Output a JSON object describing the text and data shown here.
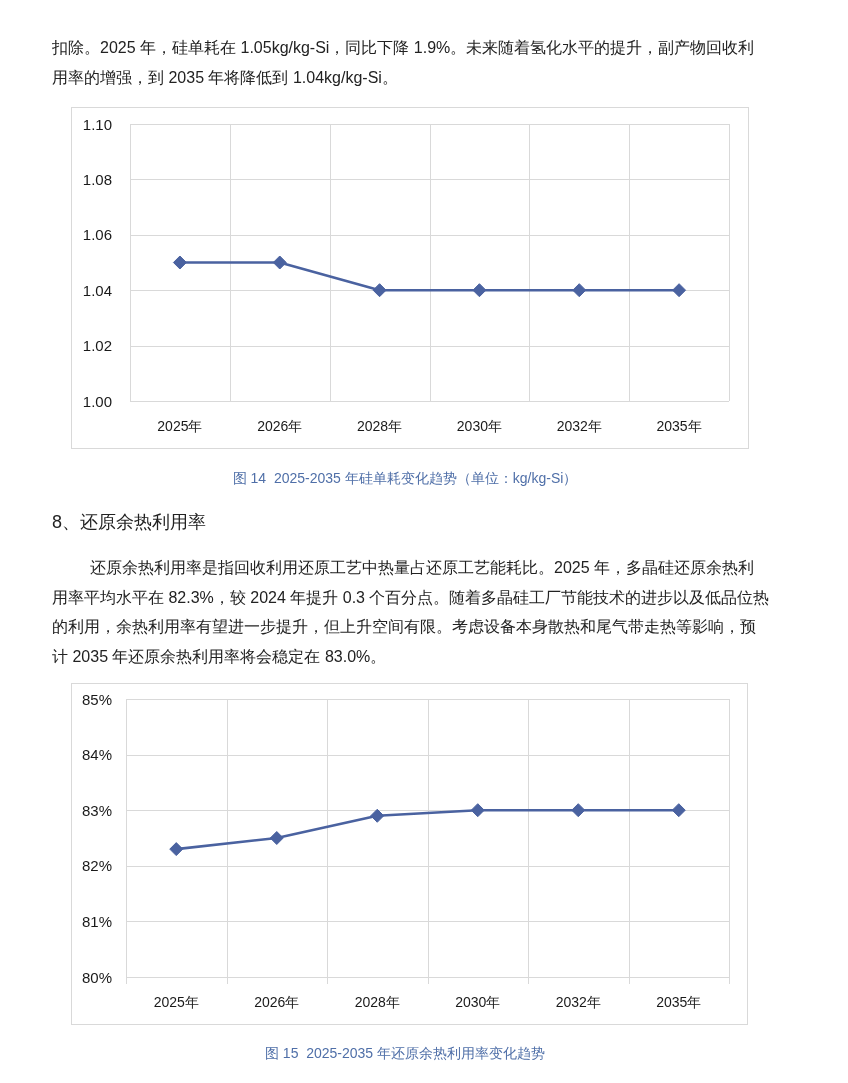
{
  "chart_data": [
    {
      "type": "line",
      "title": "图 14  2025-2035 年硅单耗变化趋势（单位：kg/kg-Si）",
      "annotations": [
        "扣除。2025 年，硅单耗在 1.05kg/kg-Si，同比下降 1.9%。未来随着氢化水平的提升，副产物回收利用率的增强，到 2035 年将降低到 1.04kg/kg-Si。"
      ],
      "categories": [
        "2025年",
        "2026年",
        "2028年",
        "2030年",
        "2032年",
        "2035年"
      ],
      "series": [
        {
          "color": "#4a62a0",
          "values": [
            1.05,
            1.05,
            1.04,
            1.04,
            1.04,
            1.04
          ]
        }
      ],
      "ylim": [
        1.0,
        1.1
      ],
      "yticks": [
        {
          "value": 1.0,
          "label": "1.00"
        },
        {
          "value": 1.02,
          "label": "1.02"
        },
        {
          "value": 1.04,
          "label": "1.04"
        },
        {
          "value": 1.06,
          "label": "1.06"
        },
        {
          "value": 1.08,
          "label": "1.08"
        },
        {
          "value": 1.1,
          "label": "1.10"
        }
      ],
      "grid": true,
      "marker": "diamond"
    },
    {
      "type": "line",
      "title": "图 15  2025-2035 年还原余热利用率变化趋势",
      "annotations": [
        "8、还原余热利用率",
        "还原余热利用率是指回收利用还原工艺中热量占还原工艺能耗比。2025 年，多晶硅还原余热利用率平均水平在 82.3%，较 2024 年提升 0.3 个百分点。随着多晶硅工厂节能技术的进步以及低品位热的利用，余热利用率有望进一步提升，但上升空间有限。考虑设备本身散热和尾气带走热等影响，预计 2035 年还原余热利用率将会稳定在 83.0%。"
      ],
      "categories": [
        "2025年",
        "2026年",
        "2028年",
        "2030年",
        "2032年",
        "2035年"
      ],
      "series": [
        {
          "color": "#4a62a0",
          "values": [
            82.3,
            82.5,
            82.9,
            83.0,
            83.0,
            83.0
          ]
        }
      ],
      "ylim": [
        80,
        85
      ],
      "yticks": [
        {
          "value": 80,
          "label": "80%"
        },
        {
          "value": 81,
          "label": "81%"
        },
        {
          "value": 82,
          "label": "82%"
        },
        {
          "value": 83,
          "label": "83%"
        },
        {
          "value": 84,
          "label": "84%"
        },
        {
          "value": 85,
          "label": "85%"
        }
      ],
      "grid": true,
      "marker": "diamond"
    }
  ]
}
